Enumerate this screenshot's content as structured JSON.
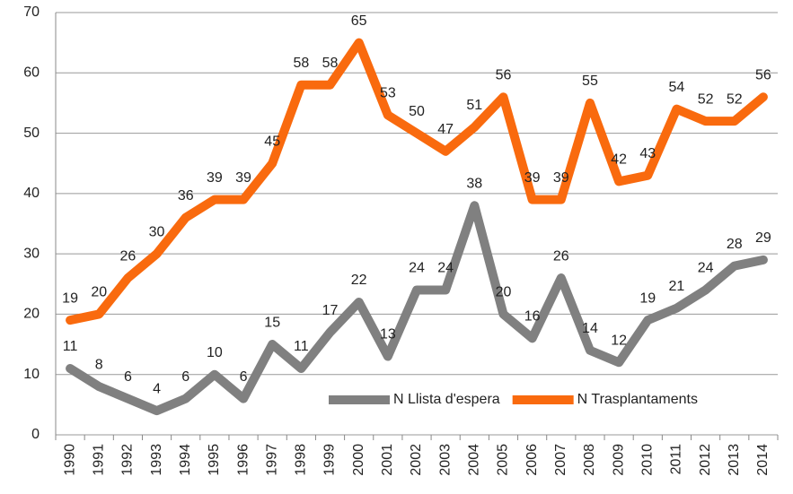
{
  "chart_data": {
    "type": "line",
    "categories": [
      "1990",
      "1991",
      "1992",
      "1993",
      "1994",
      "1995",
      "1996",
      "1997",
      "1998",
      "1999",
      "2000",
      "2001",
      "2002",
      "2003",
      "2004",
      "2005",
      "2006",
      "2007",
      "2008",
      "2009",
      "2010",
      "2011",
      "2012",
      "2013",
      "2014"
    ],
    "series": [
      {
        "name": "N Llista d'espera",
        "color": "#808080",
        "values": [
          11,
          8,
          6,
          4,
          6,
          10,
          6,
          15,
          11,
          17,
          22,
          13,
          24,
          24,
          38,
          20,
          16,
          26,
          14,
          12,
          19,
          21,
          24,
          28,
          29
        ]
      },
      {
        "name": "N Trasplantaments",
        "color": "#f96a0e",
        "values": [
          19,
          20,
          26,
          30,
          36,
          39,
          39,
          45,
          58,
          58,
          65,
          53,
          50,
          47,
          51,
          56,
          39,
          39,
          55,
          42,
          43,
          54,
          52,
          52,
          56
        ]
      }
    ],
    "ylim": [
      0,
      70
    ],
    "yticks": [
      0,
      10,
      20,
      30,
      40,
      50,
      60,
      70
    ],
    "grid": true,
    "legend": "lower right"
  }
}
